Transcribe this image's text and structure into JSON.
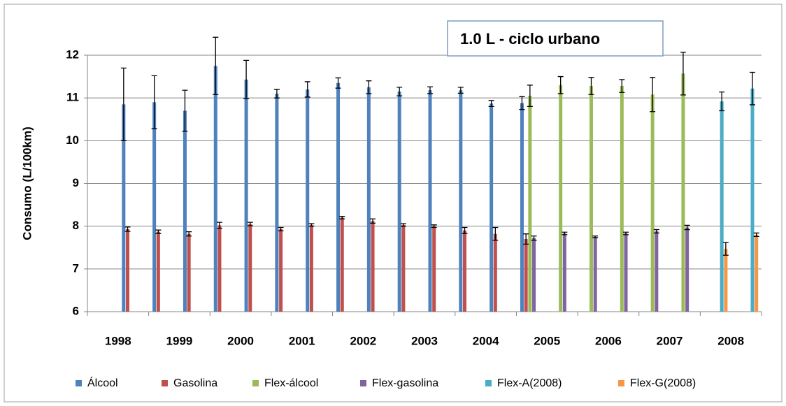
{
  "chart_data": {
    "type": "bar",
    "annotation": "1.0 L - ciclo urbano",
    "y_label": "Consumo (L/100km)",
    "categories": [
      "1998",
      null,
      "1999",
      null,
      "2000",
      null,
      "2001",
      null,
      "2002",
      null,
      "2003",
      null,
      "2004",
      null,
      "2005",
      null,
      "2006",
      null,
      "2007",
      null,
      "2008",
      null
    ],
    "ylim": [
      6,
      12
    ],
    "yticks": [
      6,
      7,
      8,
      9,
      10,
      11,
      12
    ],
    "grid": true,
    "legend": "bottom",
    "series": [
      {
        "name": "Álcool",
        "color": "#4f81bd",
        "values": [
          null,
          10.85,
          10.9,
          10.7,
          11.75,
          11.43,
          11.1,
          11.2,
          11.35,
          11.25,
          11.15,
          11.18,
          11.18,
          10.87,
          10.88,
          null,
          null,
          null,
          null,
          null,
          null,
          null
        ],
        "errors": [
          null,
          0.85,
          0.62,
          0.48,
          0.67,
          0.45,
          0.1,
          0.18,
          0.12,
          0.15,
          0.1,
          0.08,
          0.07,
          0.07,
          0.15,
          null,
          null,
          null,
          null,
          null,
          null,
          null
        ]
      },
      {
        "name": "Gasolina",
        "color": "#c0504d",
        "values": [
          null,
          7.93,
          7.87,
          7.82,
          8.02,
          8.05,
          7.93,
          8.03,
          8.2,
          8.12,
          8.03,
          8.0,
          7.9,
          7.82,
          7.7,
          null,
          null,
          null,
          null,
          null,
          null,
          null
        ],
        "errors": [
          null,
          0.05,
          0.04,
          0.05,
          0.07,
          0.04,
          0.04,
          0.03,
          0.03,
          0.05,
          0.03,
          0.03,
          0.07,
          0.15,
          0.12,
          null,
          null,
          null,
          null,
          null,
          null,
          null
        ]
      },
      {
        "name": "Flex-álcool",
        "color": "#9bbb59",
        "values": [
          null,
          null,
          null,
          null,
          null,
          null,
          null,
          null,
          null,
          null,
          null,
          null,
          null,
          null,
          11.05,
          11.3,
          11.28,
          11.28,
          11.08,
          11.57,
          null,
          null
        ],
        "errors": [
          null,
          null,
          null,
          null,
          null,
          null,
          null,
          null,
          null,
          null,
          null,
          null,
          null,
          null,
          0.25,
          0.2,
          0.2,
          0.15,
          0.4,
          0.5,
          null,
          null
        ]
      },
      {
        "name": "Flex-gasolina",
        "color": "#8064a2",
        "values": [
          null,
          null,
          null,
          null,
          null,
          null,
          null,
          null,
          null,
          null,
          null,
          null,
          null,
          null,
          7.72,
          7.83,
          7.75,
          7.83,
          7.88,
          7.97,
          null,
          null
        ],
        "errors": [
          null,
          null,
          null,
          null,
          null,
          null,
          null,
          null,
          null,
          null,
          null,
          null,
          null,
          null,
          0.05,
          0.03,
          0.02,
          0.03,
          0.04,
          0.05,
          null,
          null
        ]
      },
      {
        "name": "Flex-A(2008)",
        "color": "#4bacc6",
        "values": [
          null,
          null,
          null,
          null,
          null,
          null,
          null,
          null,
          null,
          null,
          null,
          null,
          null,
          null,
          null,
          null,
          null,
          null,
          null,
          null,
          10.92,
          11.22
        ],
        "errors": [
          null,
          null,
          null,
          null,
          null,
          null,
          null,
          null,
          null,
          null,
          null,
          null,
          null,
          null,
          null,
          null,
          null,
          null,
          null,
          null,
          0.22,
          0.38
        ]
      },
      {
        "name": "Flex-G(2008)",
        "color": "#f79646",
        "values": [
          null,
          null,
          null,
          null,
          null,
          null,
          null,
          null,
          null,
          null,
          null,
          null,
          null,
          null,
          null,
          null,
          null,
          null,
          null,
          null,
          7.47,
          7.8
        ],
        "errors": [
          null,
          null,
          null,
          null,
          null,
          null,
          null,
          null,
          null,
          null,
          null,
          null,
          null,
          null,
          null,
          null,
          null,
          null,
          null,
          null,
          0.15,
          0.04
        ]
      }
    ]
  }
}
